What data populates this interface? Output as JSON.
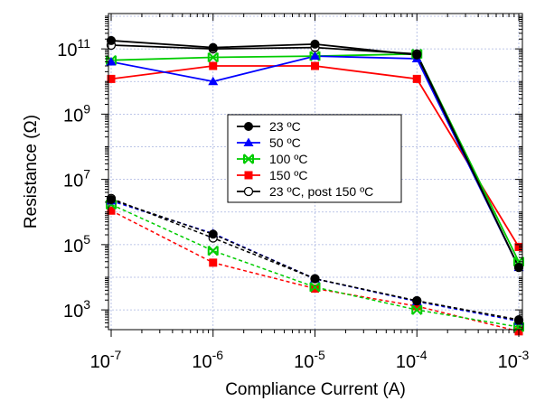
{
  "chart_data": {
    "type": "line",
    "xlabel": "Compliance Current (A)",
    "ylabel": "Resistance (Ω)",
    "xscale": "log",
    "yscale": "log",
    "xlim": [
      1e-07,
      0.001
    ],
    "ylim": [
      300,
      1000000000000.0
    ],
    "grid": true,
    "legend_position": "center",
    "x_ticks": [
      {
        "value": 1e-07,
        "base": "10",
        "exp": "-7"
      },
      {
        "value": 1e-06,
        "base": "10",
        "exp": "-6"
      },
      {
        "value": 1e-05,
        "base": "10",
        "exp": "-5"
      },
      {
        "value": 0.0001,
        "base": "10",
        "exp": "-4"
      },
      {
        "value": 0.001,
        "base": "10",
        "exp": "-3"
      }
    ],
    "y_ticks": [
      {
        "value": 1000.0,
        "base": "10",
        "exp": "3"
      },
      {
        "value": 100000.0,
        "base": "10",
        "exp": "5"
      },
      {
        "value": 10000000.0,
        "base": "10",
        "exp": "7"
      },
      {
        "value": 1000000000.0,
        "base": "10",
        "exp": "9"
      },
      {
        "value": 100000000000.0,
        "base": "10",
        "exp": "11"
      }
    ],
    "x": [
      1e-07,
      1e-06,
      1e-05,
      0.0001,
      0.001
    ],
    "series": [
      {
        "name": "23 ºC",
        "color": "#000000",
        "marker": "circle-filled",
        "hrs": [
          180000000000.0,
          110000000000.0,
          140000000000.0,
          65000000000.0,
          20000.0
        ],
        "lrs": [
          2400000.0,
          210000.0,
          9000.0,
          1900.0,
          500
        ]
      },
      {
        "name": "50 ºC",
        "color": "#0000ff",
        "marker": "triangle",
        "hrs": [
          40000000000.0,
          10000000000.0,
          60000000000.0,
          50000000000.0,
          20000.0
        ],
        "lrs": [
          2200000.0,
          220000.0,
          9000.0,
          1800.0,
          450
        ]
      },
      {
        "name": "100 ºC",
        "color": "#00cc00",
        "marker": "x",
        "hrs": [
          45000000000.0,
          55000000000.0,
          60000000000.0,
          70000000000.0,
          30000.0
        ],
        "lrs": [
          1700000.0,
          65000.0,
          5000.0,
          1000.0,
          300
        ]
      },
      {
        "name": "150 ºC",
        "color": "#ff0000",
        "marker": "square",
        "hrs": [
          12000000000.0,
          30000000000.0,
          30000000000.0,
          12000000000.0,
          85000.0
        ],
        "lrs": [
          1100000.0,
          28000.0,
          4500.0,
          1300.0,
          220
        ]
      },
      {
        "name": "23 ºC, post 150 ºC",
        "color": "#000000",
        "marker": "circle-open",
        "hrs": [
          130000000000.0,
          100000000000.0,
          110000000000.0,
          70000000000.0,
          20000.0
        ],
        "lrs": [
          2600000.0,
          160000.0,
          9000.0,
          1900.0,
          480
        ]
      }
    ]
  }
}
